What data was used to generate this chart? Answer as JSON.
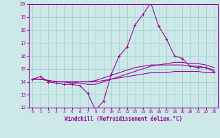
{
  "xlabel": "Windchill (Refroidissement éolien,°C)",
  "bg_color": "#cce8e8",
  "line_color": "#990099",
  "grid_color": "#99cccc",
  "xlim": [
    -0.5,
    23.5
  ],
  "ylim": [
    12,
    20
  ],
  "xticks": [
    0,
    1,
    2,
    3,
    4,
    5,
    6,
    7,
    8,
    9,
    10,
    11,
    12,
    13,
    14,
    15,
    16,
    17,
    18,
    19,
    20,
    21,
    22,
    23
  ],
  "yticks": [
    12,
    13,
    14,
    15,
    16,
    17,
    18,
    19,
    20
  ],
  "series": [
    [
      14.2,
      14.4,
      14.0,
      13.9,
      13.8,
      13.8,
      13.7,
      13.1,
      11.8,
      12.5,
      14.6,
      16.0,
      16.7,
      18.4,
      19.2,
      20.1,
      18.3,
      17.3,
      16.0,
      15.8,
      15.2,
      15.1,
      15.1,
      14.8
    ],
    [
      14.2,
      14.2,
      14.1,
      14.0,
      14.0,
      13.9,
      13.9,
      13.8,
      13.8,
      14.0,
      14.2,
      14.4,
      14.6,
      14.8,
      15.0,
      15.2,
      15.3,
      15.4,
      15.5,
      15.5,
      15.4,
      15.4,
      15.3,
      15.1
    ],
    [
      14.2,
      14.2,
      14.1,
      14.0,
      14.0,
      13.9,
      14.0,
      14.0,
      14.1,
      14.3,
      14.5,
      14.7,
      14.9,
      15.1,
      15.2,
      15.3,
      15.3,
      15.3,
      15.3,
      15.3,
      15.2,
      15.2,
      15.1,
      14.9
    ],
    [
      14.2,
      14.2,
      14.1,
      14.0,
      14.0,
      14.0,
      14.0,
      14.0,
      14.0,
      14.1,
      14.2,
      14.3,
      14.4,
      14.5,
      14.6,
      14.7,
      14.7,
      14.7,
      14.8,
      14.8,
      14.8,
      14.8,
      14.7,
      14.7
    ]
  ]
}
